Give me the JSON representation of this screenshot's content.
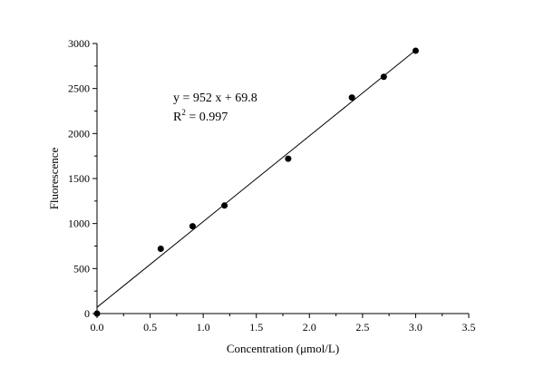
{
  "chart_data": {
    "type": "scatter",
    "title": "",
    "xlabel": "Concentration (μmol/L)",
    "ylabel": "Fluorescence",
    "xlim": [
      0,
      3.5
    ],
    "ylim": [
      0,
      3000
    ],
    "xticks": [
      "0.0",
      "0.5",
      "1.0",
      "1.5",
      "2.0",
      "2.5",
      "3.0",
      "3.5"
    ],
    "yticks": [
      "0",
      "500",
      "1000",
      "1500",
      "2000",
      "2500",
      "3000"
    ],
    "grid": false,
    "points": {
      "x": [
        0,
        0.6,
        0.9,
        1.2,
        1.8,
        2.4,
        2.7,
        3.0
      ],
      "y": [
        0,
        720,
        970,
        1200,
        1720,
        2400,
        2630,
        2920
      ]
    },
    "fit": {
      "slope": 952,
      "intercept": 69.8,
      "x_range": [
        0,
        3.0
      ]
    },
    "annotation": {
      "equation": "y = 952 x + 69.8",
      "r2_prefix": "R",
      "r2_sup": "2",
      "r2_value": " = 0.997"
    },
    "colors": {
      "points": "#000000",
      "line": "#000000"
    }
  }
}
